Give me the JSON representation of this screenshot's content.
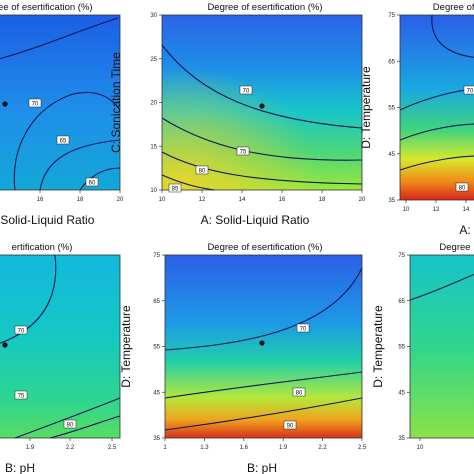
{
  "chart_data": [
    {
      "type": "heatmap",
      "title": "Degree of esertification (%)",
      "xlabel": "A: Solid-Liquid Ratio",
      "ylabel": "",
      "xlim": [
        10,
        20
      ],
      "x_ticks": [
        "16",
        "18",
        "20"
      ],
      "y_ticks": [],
      "contours": [
        {
          "label": "70",
          "x": 15.3,
          "y": null
        },
        {
          "label": "65",
          "x": 17.6,
          "y": null
        },
        {
          "label": "60",
          "x": 19.2,
          "y": null
        }
      ],
      "design_point": {
        "x": 15,
        "y": null
      }
    },
    {
      "type": "heatmap",
      "title": "Degree of esertification (%)",
      "xlabel": "A: Solid-Liquid Ratio",
      "ylabel": "C: Sonication Time",
      "xlim": [
        10,
        20
      ],
      "ylim": [
        10,
        30
      ],
      "x_ticks": [
        "10",
        "12",
        "14",
        "16",
        "18",
        "20"
      ],
      "y_ticks": [
        "10",
        "15",
        "20",
        "25",
        "30"
      ],
      "contours": [
        {
          "label": "70",
          "x": 14.6,
          "y": 20.8
        },
        {
          "label": "75",
          "x": 13.3,
          "y": 16.2
        },
        {
          "label": "80",
          "x": 11.8,
          "y": 13.0
        },
        {
          "label": "85",
          "x": 10.8,
          "y": 11.2
        }
      ],
      "design_point": {
        "x": 15,
        "y": 20
      }
    },
    {
      "type": "heatmap",
      "title": "Degree of es",
      "xlabel": "A:",
      "ylabel": "D: Temperature",
      "xlim": [
        10,
        15
      ],
      "ylim": [
        35,
        75
      ],
      "x_ticks": [
        "10",
        "12",
        "14"
      ],
      "y_ticks": [
        "35",
        "45",
        "55",
        "65",
        "75"
      ],
      "contours": [
        {
          "label": "70",
          "x": 15,
          "y": 58
        },
        {
          "label": "80",
          "x": 14.5,
          "y": 38
        }
      ],
      "design_point": null
    },
    {
      "type": "heatmap",
      "title": "ertification (%)",
      "xlabel": "B: pH",
      "ylabel": "",
      "x_ticks": [
        "1.9",
        "2.2",
        "2.5"
      ],
      "y_ticks": [],
      "contours": [
        {
          "label": "70",
          "x": null,
          "y": null
        },
        {
          "label": "75",
          "x": null,
          "y": null
        },
        {
          "label": "80",
          "x": 2.3,
          "y": null
        }
      ],
      "design_point": {
        "x": null,
        "y": null
      }
    },
    {
      "type": "heatmap",
      "title": "Degree of esertification (%)",
      "xlabel": "B: pH",
      "ylabel": "D: Temperature",
      "xlim": [
        1,
        2.5
      ],
      "ylim": [
        35,
        75
      ],
      "x_ticks": [
        "1",
        "1.3",
        "1.6",
        "1.9",
        "2.2",
        "2.5"
      ],
      "y_ticks": [
        "35",
        "45",
        "55",
        "65",
        "75"
      ],
      "contours": [
        {
          "label": "70",
          "x": 2.05,
          "y": 58.5
        },
        {
          "label": "80",
          "x": 2.02,
          "y": 44.2
        },
        {
          "label": "90",
          "x": 1.97,
          "y": 39.8
        }
      ],
      "design_point": {
        "x": 1.75,
        "y": 55
      }
    },
    {
      "type": "heatmap",
      "title": "Degree",
      "xlabel": "",
      "ylabel": "D: Temperature",
      "ylim": [
        35,
        75
      ],
      "x_ticks": [
        "10"
      ],
      "y_ticks": [
        "35",
        "45",
        "55",
        "65",
        "75"
      ],
      "contours": [],
      "design_point": null
    }
  ]
}
